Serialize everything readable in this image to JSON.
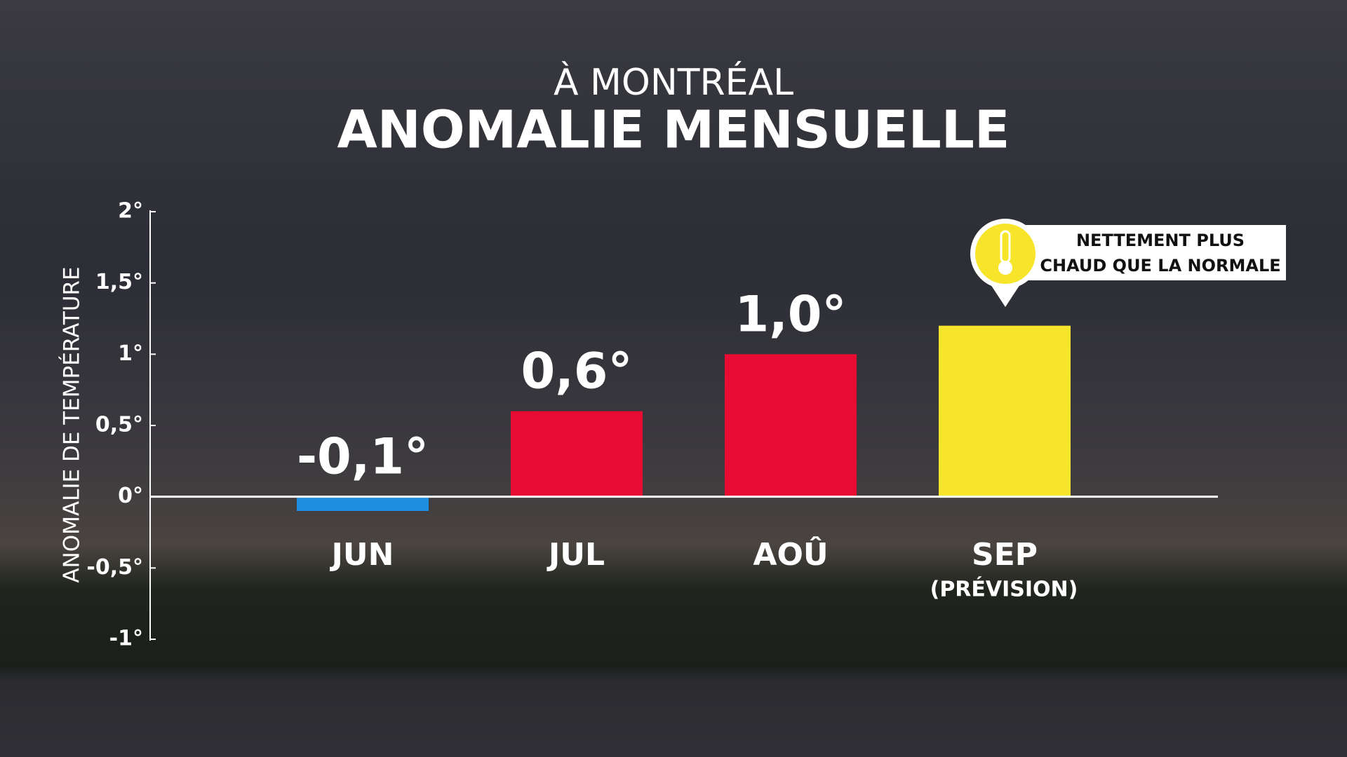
{
  "chart_data": {
    "type": "bar",
    "title": "À MONTRÉAL",
    "subtitle": "ANOMALIE MENSUELLE",
    "y_label": "ANOMALIE DE TEMPÉRATURE",
    "categories": [
      "JUN",
      "JUL",
      "AOÛ",
      "SEP"
    ],
    "values": [
      -0.1,
      0.6,
      1.0,
      1.2
    ],
    "value_labels": [
      "-0,1°",
      "0,6°",
      "1,0°",
      null
    ],
    "colors": [
      "#1e8fe0",
      "#e80c32",
      "#e80c32",
      "#f7e52b"
    ],
    "ylim": [
      -1,
      2
    ],
    "yticks": [
      {
        "value": -1,
        "label": "-1°"
      },
      {
        "value": -0.5,
        "label": "-0,5°"
      },
      {
        "value": 0,
        "label": "0°"
      },
      {
        "value": 0.5,
        "label": "0,5°"
      },
      {
        "value": 1,
        "label": "1°"
      },
      {
        "value": 1.5,
        "label": "1,5°"
      },
      {
        "value": 2,
        "label": "2°"
      }
    ],
    "annotations": {
      "forecast": "(PRÉVISION)",
      "callout": [
        "NETTEMENT PLUS",
        "CHAUD QUE LA NORMALE"
      ]
    }
  }
}
